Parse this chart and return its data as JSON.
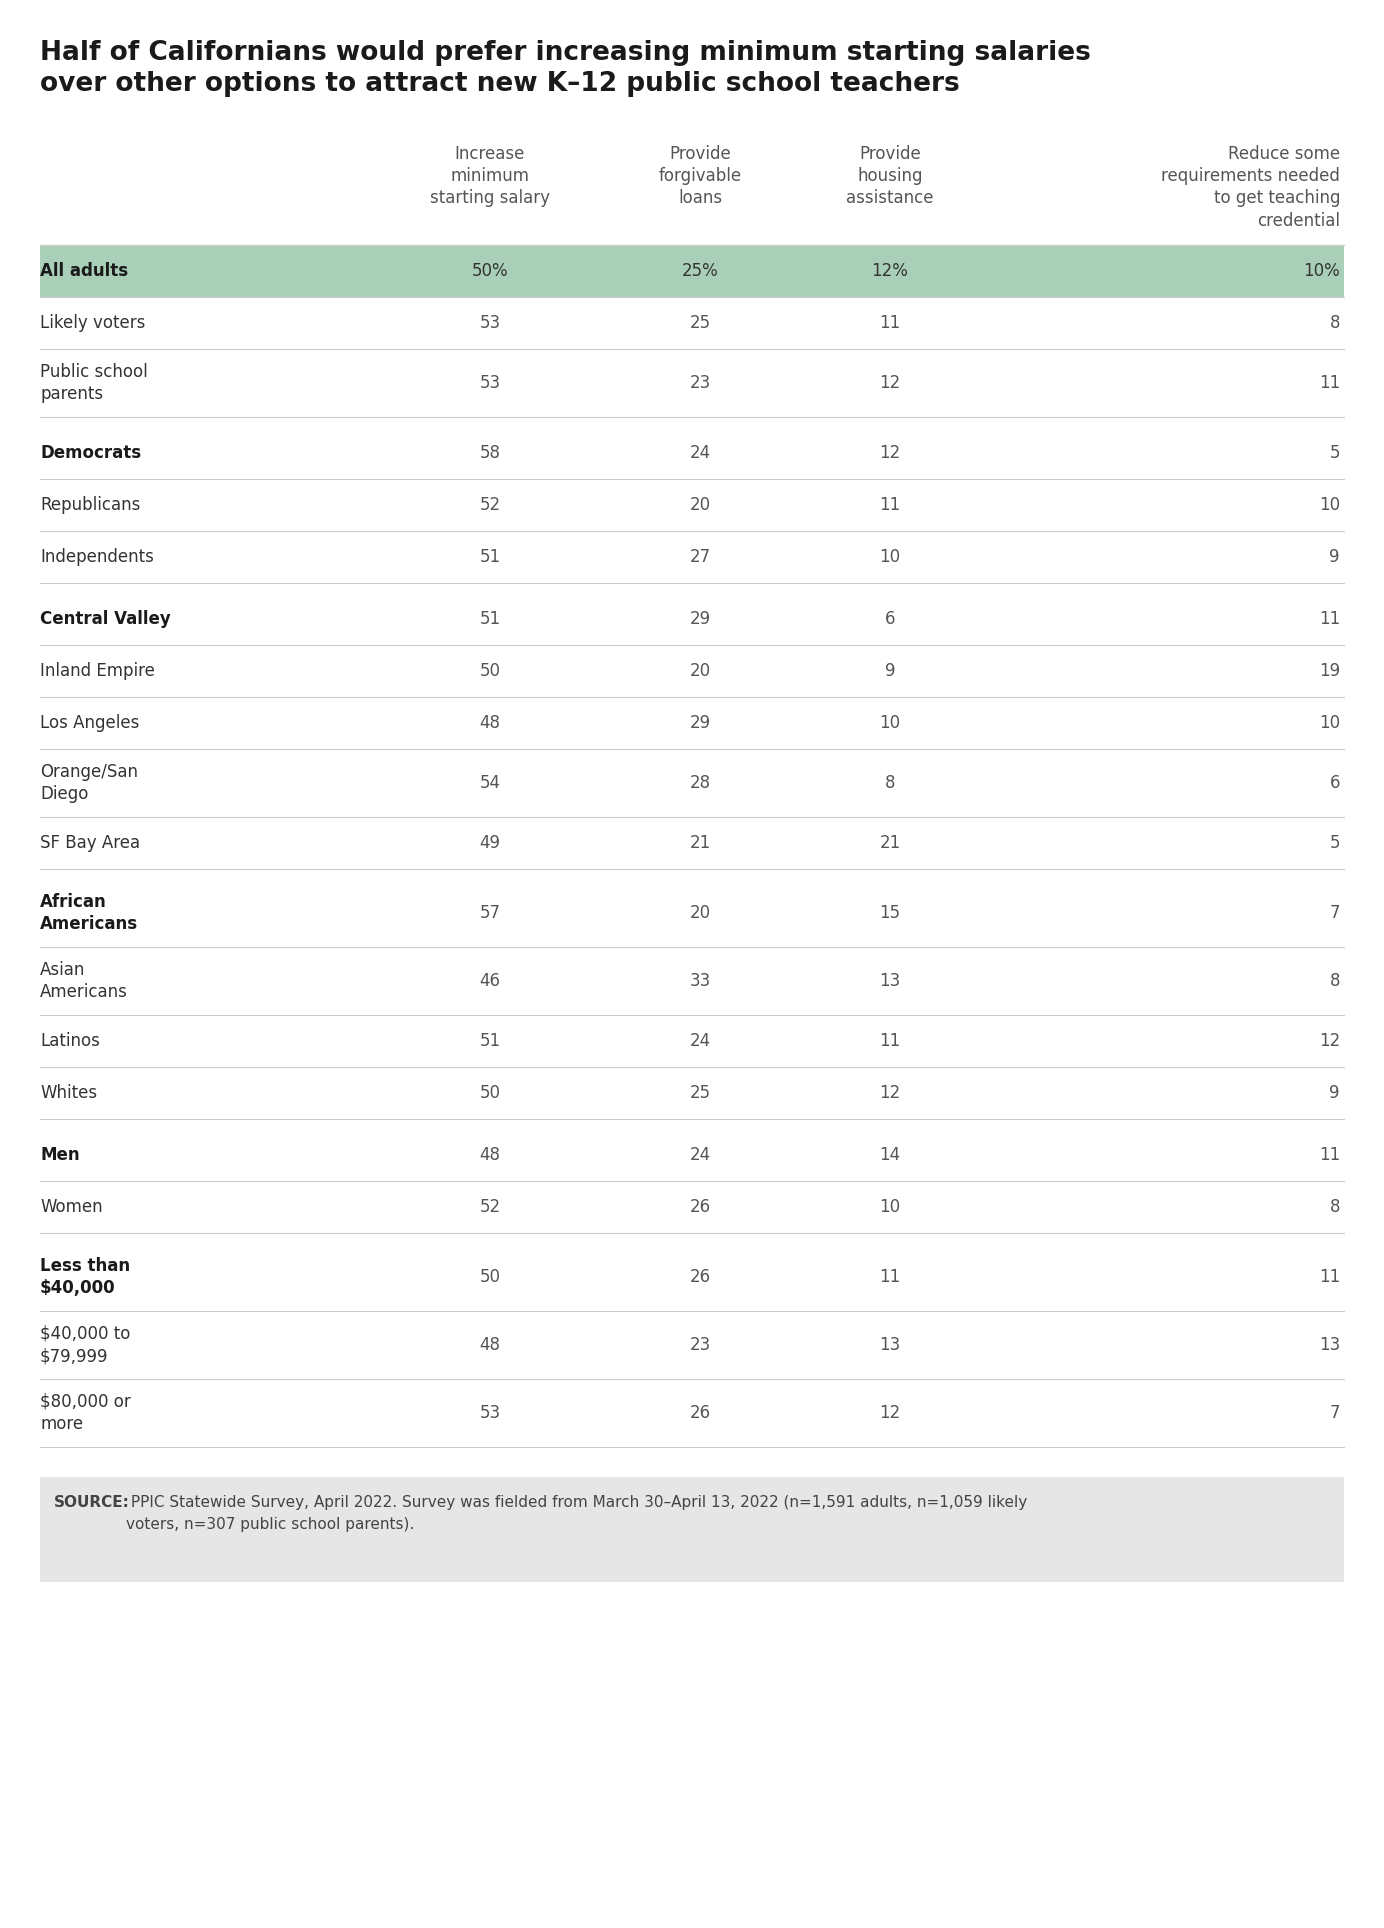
{
  "title_line1": "Half of Californians would prefer increasing minimum starting salaries",
  "title_line2": "over other options to attract new K–12 public school teachers",
  "col_headers": [
    "Increase\nminimum\nstarting salary",
    "Provide\nforgivable\nloans",
    "Provide\nhousing\nassistance",
    "Reduce some\nrequirements needed\nto get teaching\ncredential"
  ],
  "rows": [
    {
      "label": "All adults",
      "values": [
        "50%",
        "25%",
        "12%",
        "10%"
      ],
      "highlight": true,
      "bold": true,
      "spacer_before": false,
      "multiline": false
    },
    {
      "label": "Likely voters",
      "values": [
        "53",
        "25",
        "11",
        "8"
      ],
      "highlight": false,
      "bold": false,
      "spacer_before": false,
      "multiline": false
    },
    {
      "label": "Public school\nparents",
      "values": [
        "53",
        "23",
        "12",
        "11"
      ],
      "highlight": false,
      "bold": false,
      "spacer_before": false,
      "multiline": true
    },
    {
      "label": "Democrats",
      "values": [
        "58",
        "24",
        "12",
        "5"
      ],
      "highlight": false,
      "bold": true,
      "spacer_before": true,
      "multiline": false
    },
    {
      "label": "Republicans",
      "values": [
        "52",
        "20",
        "11",
        "10"
      ],
      "highlight": false,
      "bold": false,
      "spacer_before": false,
      "multiline": false
    },
    {
      "label": "Independents",
      "values": [
        "51",
        "27",
        "10",
        "9"
      ],
      "highlight": false,
      "bold": false,
      "spacer_before": false,
      "multiline": false
    },
    {
      "label": "Central Valley",
      "values": [
        "51",
        "29",
        "6",
        "11"
      ],
      "highlight": false,
      "bold": true,
      "spacer_before": true,
      "multiline": false
    },
    {
      "label": "Inland Empire",
      "values": [
        "50",
        "20",
        "9",
        "19"
      ],
      "highlight": false,
      "bold": false,
      "spacer_before": false,
      "multiline": false
    },
    {
      "label": "Los Angeles",
      "values": [
        "48",
        "29",
        "10",
        "10"
      ],
      "highlight": false,
      "bold": false,
      "spacer_before": false,
      "multiline": false
    },
    {
      "label": "Orange/San\nDiego",
      "values": [
        "54",
        "28",
        "8",
        "6"
      ],
      "highlight": false,
      "bold": false,
      "spacer_before": false,
      "multiline": true
    },
    {
      "label": "SF Bay Area",
      "values": [
        "49",
        "21",
        "21",
        "5"
      ],
      "highlight": false,
      "bold": false,
      "spacer_before": false,
      "multiline": false
    },
    {
      "label": "African\nAmericans",
      "values": [
        "57",
        "20",
        "15",
        "7"
      ],
      "highlight": false,
      "bold": true,
      "spacer_before": true,
      "multiline": true
    },
    {
      "label": "Asian\nAmericans",
      "values": [
        "46",
        "33",
        "13",
        "8"
      ],
      "highlight": false,
      "bold": false,
      "spacer_before": false,
      "multiline": true
    },
    {
      "label": "Latinos",
      "values": [
        "51",
        "24",
        "11",
        "12"
      ],
      "highlight": false,
      "bold": false,
      "spacer_before": false,
      "multiline": false
    },
    {
      "label": "Whites",
      "values": [
        "50",
        "25",
        "12",
        "9"
      ],
      "highlight": false,
      "bold": false,
      "spacer_before": false,
      "multiline": false
    },
    {
      "label": "Men",
      "values": [
        "48",
        "24",
        "14",
        "11"
      ],
      "highlight": false,
      "bold": true,
      "spacer_before": true,
      "multiline": false
    },
    {
      "label": "Women",
      "values": [
        "52",
        "26",
        "10",
        "8"
      ],
      "highlight": false,
      "bold": false,
      "spacer_before": false,
      "multiline": false
    },
    {
      "label": "Less than\n$40,000",
      "values": [
        "50",
        "26",
        "11",
        "11"
      ],
      "highlight": false,
      "bold": true,
      "spacer_before": true,
      "multiline": true
    },
    {
      "label": "$40,000 to\n$79,999",
      "values": [
        "48",
        "23",
        "13",
        "13"
      ],
      "highlight": false,
      "bold": false,
      "spacer_before": false,
      "multiline": true
    },
    {
      "label": "$80,000 or\nmore",
      "values": [
        "53",
        "26",
        "12",
        "7"
      ],
      "highlight": false,
      "bold": false,
      "spacer_before": false,
      "multiline": true
    }
  ],
  "source_bold": "SOURCE:",
  "source_rest": " PPIC Statewide Survey, April 2022. Survey was fielded from March 30–April 13, 2022 (n=1,591 adults, n=1,059 likely\nvoters, n=307 public school parents).",
  "highlight_color": "#aacfb8",
  "bg_color": "#ffffff",
  "source_bg_color": "#e6e6e6",
  "title_color": "#1a1a1a",
  "header_color": "#555555",
  "row_label_bold_color": "#1a1a1a",
  "row_label_color": "#333333",
  "value_color": "#555555",
  "line_color": "#cccccc",
  "title_fontsize": 19,
  "header_fontsize": 12,
  "row_fontsize": 12,
  "source_fontsize": 11
}
